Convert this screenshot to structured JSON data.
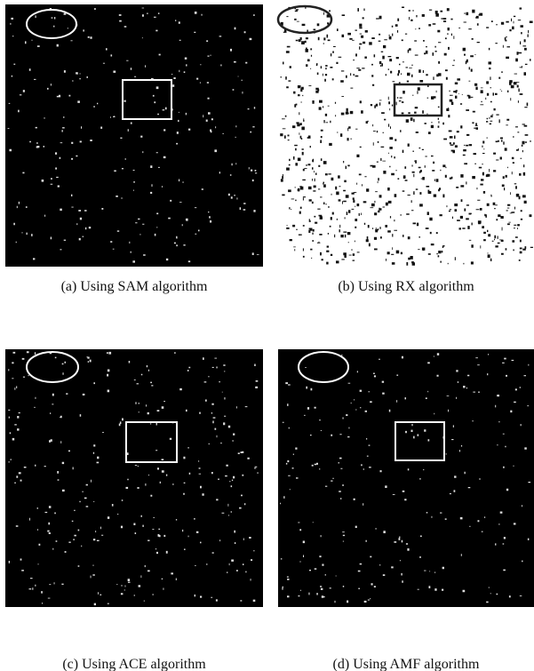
{
  "figure": {
    "panels": [
      {
        "caption": "(a) Using SAM algorithm"
      },
      {
        "caption": "(b) Using RX algorithm"
      },
      {
        "caption": "(c) Using ACE algorithm"
      },
      {
        "caption": "(d) Using AMF algorithm"
      }
    ]
  }
}
